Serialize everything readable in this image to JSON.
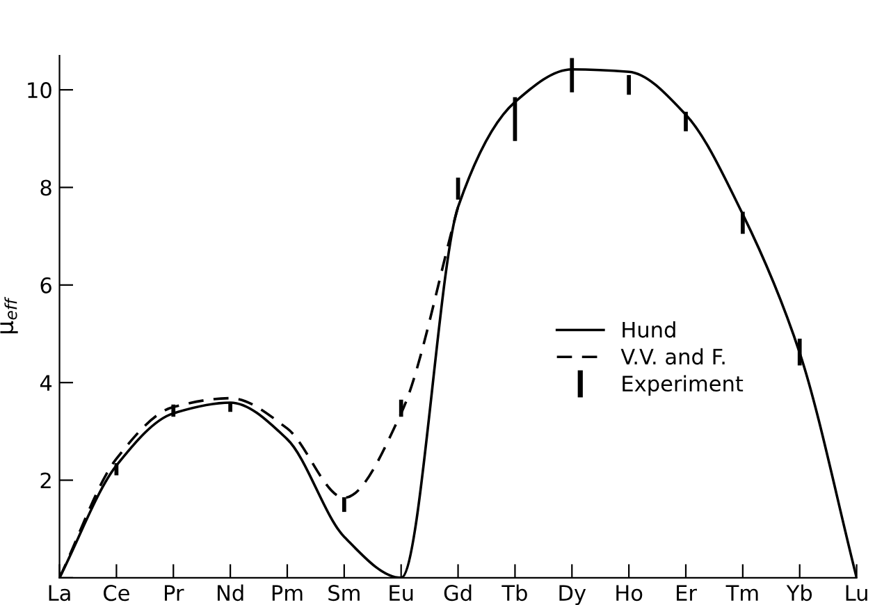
{
  "chart_data": {
    "type": "line",
    "ylabel": "μ$_{eff}$",
    "categories": [
      "La",
      "Ce",
      "Pr",
      "Nd",
      "Pm",
      "Sm",
      "Eu",
      "Gd",
      "Tb",
      "Dy",
      "Ho",
      "Er",
      "Tm",
      "Yb",
      "Lu"
    ],
    "ylim": [
      0,
      10.7
    ],
    "yticks": [
      {
        "value": 0,
        "label": null
      },
      2,
      4,
      6,
      8,
      10
    ],
    "legend": "right",
    "series": [
      {
        "name": "Hund",
        "color": "#000000",
        "line_style": "solid",
        "values": [
          0,
          2.3,
          3.37,
          3.59,
          2.84,
          0.84,
          0,
          7.6,
          9.75,
          10.42,
          10.37,
          9.49,
          7.45,
          4.61,
          0
        ]
      },
      {
        "name": "V.V. and F.",
        "color": "#000000",
        "line_style": "dashed",
        "values": [
          0,
          2.44,
          3.5,
          3.68,
          3.06,
          1.64,
          3.37,
          7.6,
          null,
          null,
          null,
          null,
          null,
          null,
          null
        ]
      },
      {
        "name": "Experiment",
        "type": "bar",
        "color": "#000000",
        "values": [
          null,
          0.25,
          0.25,
          0.2,
          null,
          0.3,
          0.35,
          0.45,
          0.9,
          0.7,
          0.4,
          0.4,
          0.45,
          0.55,
          null
        ],
        "base": [
          null,
          2.1,
          3.3,
          3.4,
          null,
          1.35,
          3.3,
          7.75,
          8.95,
          9.95,
          9.9,
          9.15,
          7.05,
          4.35,
          null
        ]
      }
    ]
  }
}
